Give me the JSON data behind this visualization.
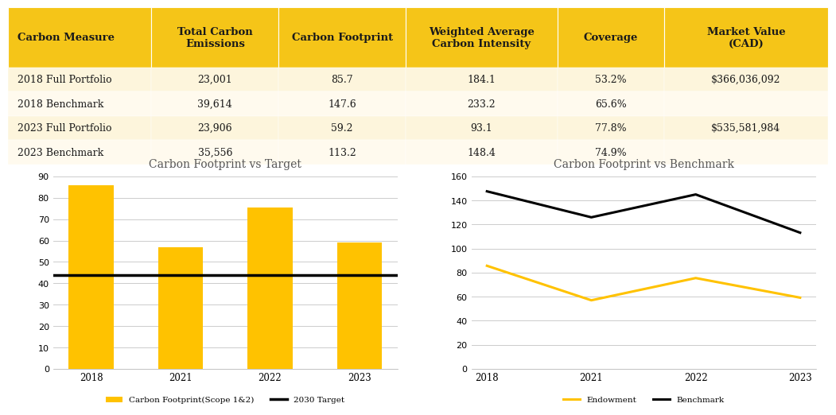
{
  "table": {
    "col_headers": [
      "Carbon Measure",
      "Total Carbon\nEmissions",
      "Carbon Footprint",
      "Weighted Average\nCarbon Intensity",
      "Coverage",
      "Market Value\n(CAD)"
    ],
    "rows": [
      [
        "2018 Full Portfolio",
        "23,001",
        "85.7",
        "184.1",
        "53.2%",
        "$366,036,092"
      ],
      [
        "2018 Benchmark",
        "39,614",
        "147.6",
        "233.2",
        "65.6%",
        ""
      ],
      [
        "2023 Full Portfolio",
        "23,906",
        "59.2",
        "93.1",
        "77.8%",
        "$535,581,984"
      ],
      [
        "2023 Benchmark",
        "35,556",
        "113.2",
        "148.4",
        "74.9%",
        ""
      ]
    ],
    "header_bg": "#F5C518",
    "row_bg_colors": [
      "#FDF5DC",
      "#FFFAEE",
      "#FDF5DC",
      "#FFFAEE"
    ],
    "header_text_color": "#1a1a1a",
    "row_text_color": "#1a1a1a",
    "header_font_size": 9.5,
    "row_font_size": 9,
    "col_widths": [
      0.175,
      0.155,
      0.155,
      0.185,
      0.13,
      0.2
    ]
  },
  "chart1": {
    "title": "Carbon Footprint vs Target",
    "bar_years": [
      "2018",
      "2021",
      "2022",
      "2023"
    ],
    "bar_values": [
      85.7,
      57.0,
      75.5,
      59.2
    ],
    "bar_color": "#FFC200",
    "target_value": 44.0,
    "target_color": "#000000",
    "target_label": "2030 Target",
    "bar_label": "Carbon Footprint(Scope 1&2)",
    "ylim": [
      0,
      90
    ],
    "yticks": [
      0,
      10,
      20,
      30,
      40,
      50,
      60,
      70,
      80,
      90
    ]
  },
  "chart2": {
    "title": "Carbon Footprint vs Benchmark",
    "years": [
      "2018",
      "2021",
      "2022",
      "2023"
    ],
    "endowment_values": [
      85.7,
      57.0,
      75.5,
      59.2
    ],
    "benchmark_values": [
      147.6,
      126.0,
      145.0,
      113.2
    ],
    "endowment_color": "#FFC200",
    "benchmark_color": "#000000",
    "endowment_label": "Endowment",
    "benchmark_label": "Benchmark",
    "ylim": [
      0,
      160
    ],
    "yticks": [
      0,
      20,
      40,
      60,
      80,
      100,
      120,
      140,
      160
    ]
  },
  "background_color": "#ffffff",
  "title_font": "serif",
  "title_color": "#555555"
}
